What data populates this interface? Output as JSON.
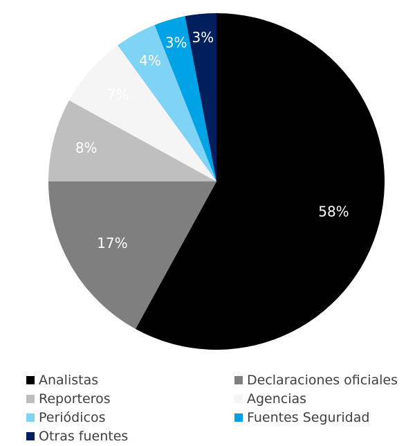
{
  "chart_data": {
    "type": "pie",
    "title": "",
    "start_angle_deg": 0,
    "direction": "clockwise",
    "legend_position": "bottom",
    "categories": [
      "Analistas",
      "Declaraciones oficiales",
      "Reporteros",
      "Agencias",
      "Periódicos",
      "Fuentes Seguridad",
      "Otras fuentes"
    ],
    "values": [
      58,
      17,
      8,
      7,
      4,
      3,
      3
    ],
    "labels": [
      "58%",
      "17%",
      "8%",
      "7%",
      "4%",
      "3%",
      "3%"
    ],
    "colors": [
      "#000000",
      "#7f7f7f",
      "#bfbfbf",
      "#f5f5f5",
      "#7fd3f5",
      "#00a3e6",
      "#001f5c"
    ]
  },
  "legend": {
    "items": [
      {
        "label": "Analistas",
        "color": "#000000"
      },
      {
        "label": "Declaraciones oficiales",
        "color": "#7f7f7f"
      },
      {
        "label": "Reporteros",
        "color": "#bfbfbf"
      },
      {
        "label": "Agencias",
        "color": "#f5f5f5"
      },
      {
        "label": "Periódicos",
        "color": "#7fd3f5"
      },
      {
        "label": "Fuentes Seguridad",
        "color": "#00a3e6"
      },
      {
        "label": "Otras fuentes",
        "color": "#001f5c"
      }
    ]
  }
}
